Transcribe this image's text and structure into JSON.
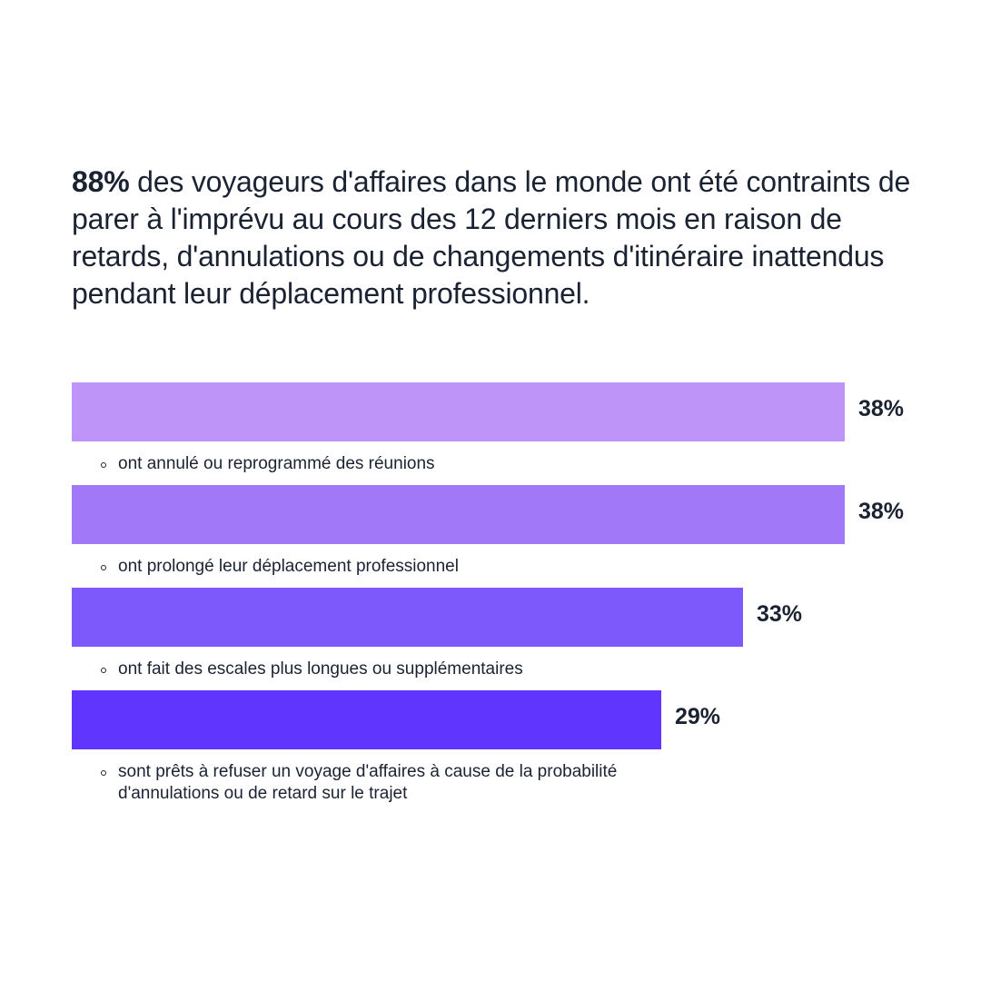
{
  "headline": {
    "stat": "88%",
    "text": " des voyageurs d'affaires dans le monde ont été contraints de parer à l'imprévu au cours des 12 derniers mois en raison de retards, d'annulations ou de changements d'itinéraire inattendus pendant leur déplacement professionnel."
  },
  "chart_data": {
    "type": "bar",
    "orientation": "horizontal",
    "unit": "%",
    "title": "",
    "xlabel": "",
    "ylabel": "",
    "grid": false,
    "legend": "none",
    "categories": [
      "ont annulé ou reprogrammé des réunions",
      "ont prolongé leur déplacement professionnel",
      "ont fait des escales plus longues ou supplémentaires",
      "sont prêts à refuser un voyage d'affaires à cause de la probabilité d'annulations ou de retard sur le trajet"
    ],
    "values": [
      38,
      38,
      33,
      29
    ],
    "value_labels": [
      "38%",
      "38%",
      "33%",
      "29%"
    ],
    "colors": [
      "#bf94f8",
      "#a078f8",
      "#7d58fa",
      "#6035fd"
    ]
  }
}
